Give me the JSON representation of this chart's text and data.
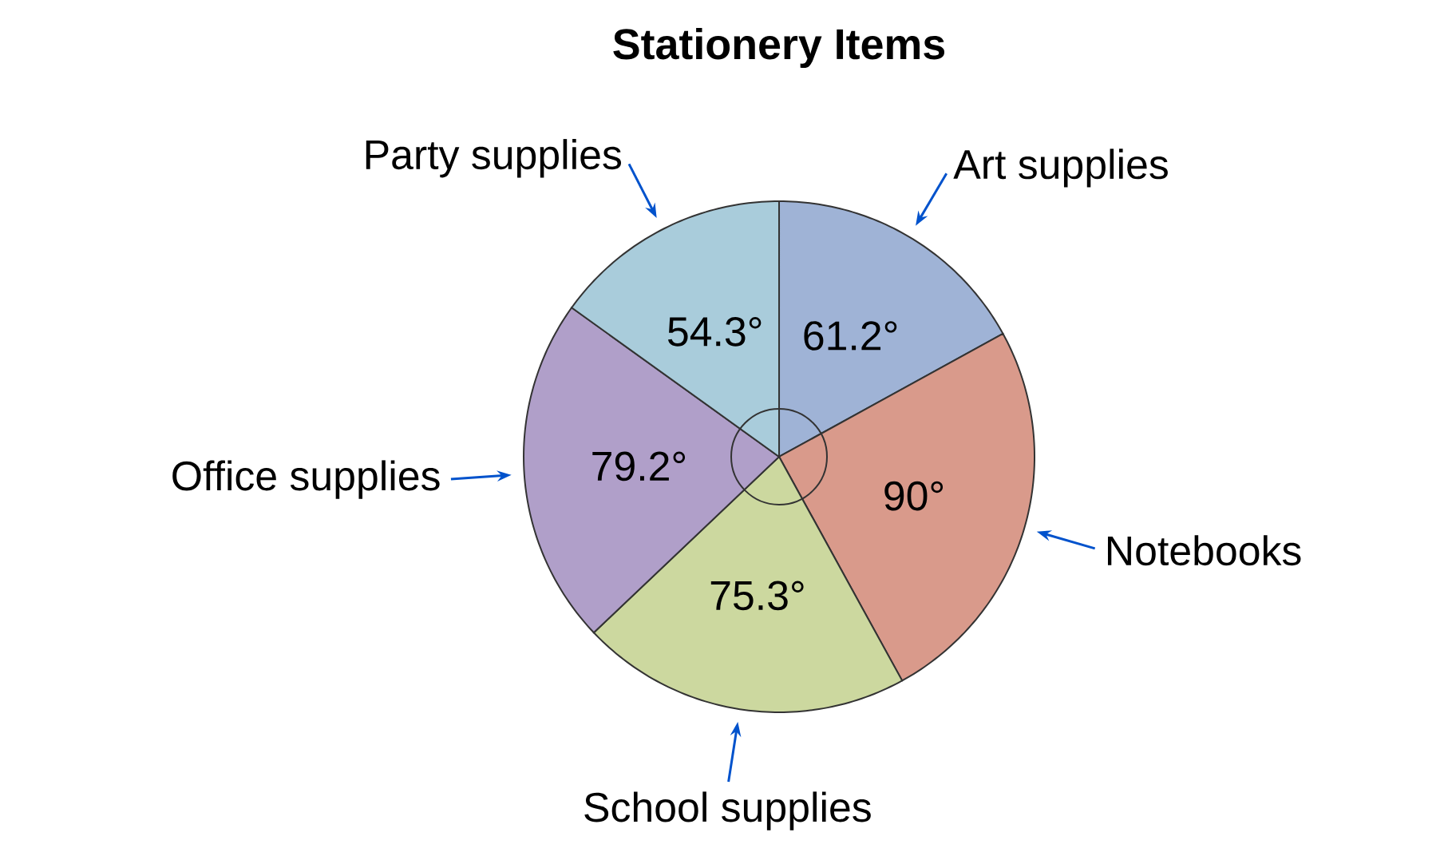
{
  "chart_data": {
    "type": "pie",
    "title": "Stationery Items",
    "categories": [
      "Art supplies",
      "Notebooks",
      "School supplies",
      "Office supplies",
      "Party supplies"
    ],
    "values": [
      61.2,
      90,
      75.3,
      79.2,
      54.3
    ],
    "value_labels": [
      "61.2°",
      "90°",
      "75.3°",
      "79.2°",
      "54.3°"
    ],
    "colors": [
      "#9fb3d6",
      "#d99a8b",
      "#ccd89f",
      "#b09fc9",
      "#a9ccdb"
    ]
  }
}
